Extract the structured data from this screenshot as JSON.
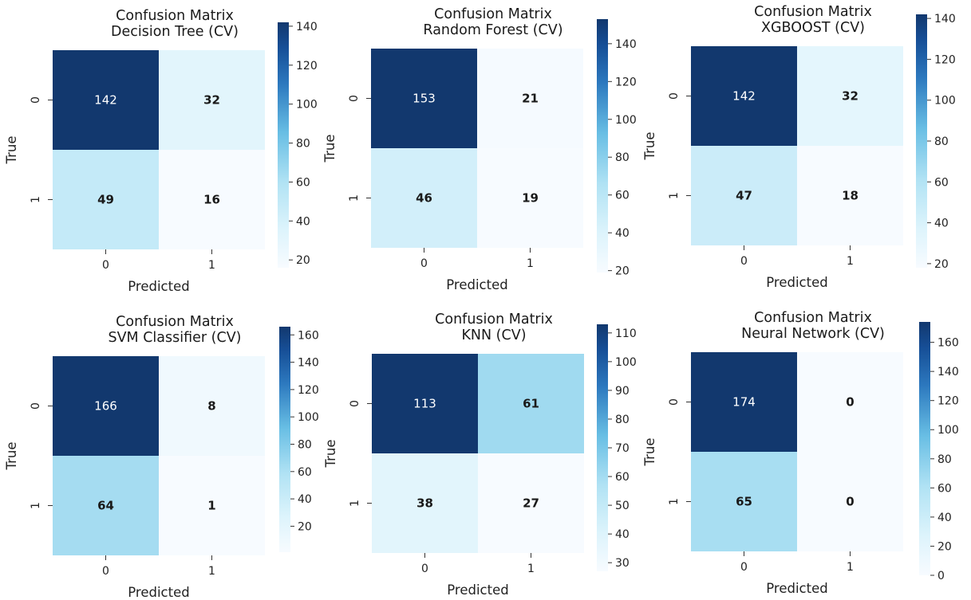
{
  "chart_data": [
    {
      "type": "heatmap",
      "title": [
        "Confusion Matrix",
        "Decision Tree (CV)"
      ],
      "xlabel": "Predicted",
      "ylabel": "True",
      "x_ticks": [
        "0",
        "1"
      ],
      "y_ticks": [
        "0",
        "1"
      ],
      "values": [
        [
          142,
          32
        ],
        [
          49,
          16
        ]
      ],
      "colorbar": {
        "ticks": [
          20,
          40,
          60,
          80,
          100,
          120,
          140
        ],
        "range": [
          16,
          142
        ]
      },
      "colormap": "Blues"
    },
    {
      "type": "heatmap",
      "title": [
        "Confusion Matrix",
        "Random Forest (CV)"
      ],
      "xlabel": "Predicted",
      "ylabel": "True",
      "x_ticks": [
        "0",
        "1"
      ],
      "y_ticks": [
        "0",
        "1"
      ],
      "values": [
        [
          153,
          21
        ],
        [
          46,
          19
        ]
      ],
      "colorbar": {
        "ticks": [
          20,
          40,
          60,
          80,
          100,
          120,
          140
        ],
        "range": [
          19,
          153
        ]
      },
      "colormap": "Blues"
    },
    {
      "type": "heatmap",
      "title": [
        "Confusion Matrix",
        "XGBOOST (CV)"
      ],
      "xlabel": "Predicted",
      "ylabel": "True",
      "x_ticks": [
        "0",
        "1"
      ],
      "y_ticks": [
        "0",
        "1"
      ],
      "values": [
        [
          142,
          32
        ],
        [
          47,
          18
        ]
      ],
      "colorbar": {
        "ticks": [
          20,
          40,
          60,
          80,
          100,
          120,
          140
        ],
        "range": [
          18,
          142
        ]
      },
      "colormap": "Blues"
    },
    {
      "type": "heatmap",
      "title": [
        "Confusion Matrix",
        "SVM Classifier (CV)"
      ],
      "xlabel": "Predicted",
      "ylabel": "True",
      "x_ticks": [
        "0",
        "1"
      ],
      "y_ticks": [
        "0",
        "1"
      ],
      "values": [
        [
          166,
          8
        ],
        [
          64,
          1
        ]
      ],
      "colorbar": {
        "ticks": [
          20,
          40,
          60,
          80,
          100,
          120,
          140,
          160
        ],
        "range": [
          1,
          166
        ]
      },
      "colormap": "Blues"
    },
    {
      "type": "heatmap",
      "title": [
        "Confusion Matrix",
        "KNN (CV)"
      ],
      "xlabel": "Predicted",
      "ylabel": "True",
      "x_ticks": [
        "0",
        "1"
      ],
      "y_ticks": [
        "0",
        "1"
      ],
      "values": [
        [
          113,
          61
        ],
        [
          38,
          27
        ]
      ],
      "colorbar": {
        "ticks": [
          30,
          40,
          50,
          60,
          70,
          80,
          90,
          100,
          110
        ],
        "range": [
          27,
          113
        ]
      },
      "colormap": "Blues"
    },
    {
      "type": "heatmap",
      "title": [
        "Confusion Matrix",
        "Neural Network (CV)"
      ],
      "xlabel": "Predicted",
      "ylabel": "True",
      "x_ticks": [
        "0",
        "1"
      ],
      "y_ticks": [
        "0",
        "1"
      ],
      "values": [
        [
          174,
          0
        ],
        [
          65,
          0
        ]
      ],
      "colorbar": {
        "ticks": [
          0,
          20,
          40,
          60,
          80,
          100,
          120,
          140,
          160
        ],
        "range": [
          0,
          174
        ]
      },
      "colormap": "Blues"
    }
  ]
}
